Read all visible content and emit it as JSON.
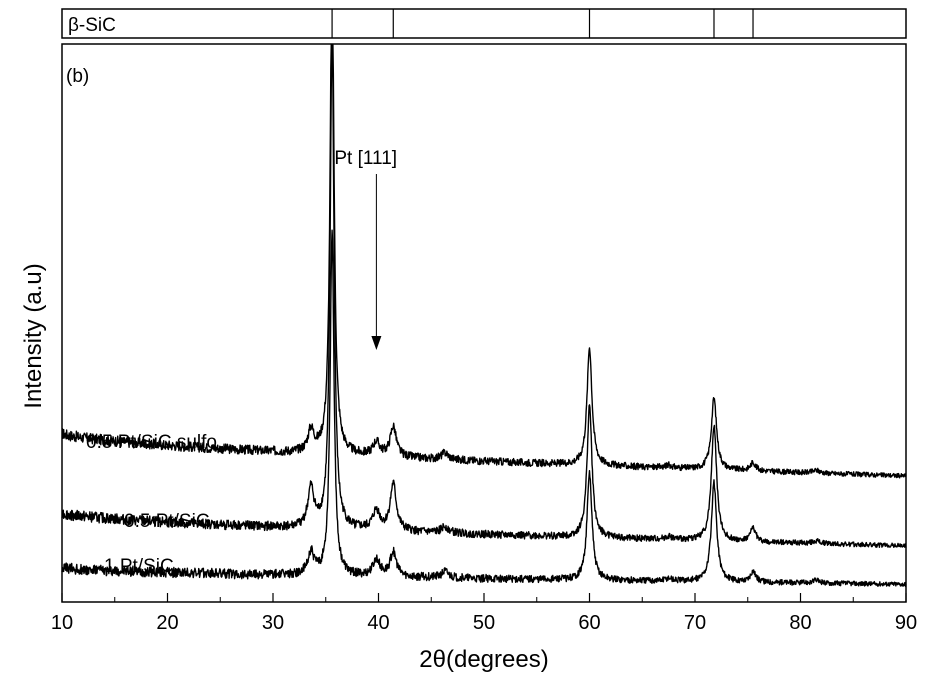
{
  "chart_data": {
    "type": "line",
    "title": "",
    "panel_label": "(b)",
    "xlabel": "2θ(degrees)",
    "ylabel": "Intensity (a.u)",
    "xlim": [
      10,
      90
    ],
    "xticks": [
      10,
      20,
      30,
      40,
      50,
      60,
      70,
      80,
      90
    ],
    "ytick_labels": false,
    "grid": false,
    "legend": "none",
    "reference": {
      "label": "β-SiC",
      "positions": [
        35.6,
        41.4,
        60.0,
        71.8,
        75.5
      ]
    },
    "annotation": {
      "text": "Pt [111]",
      "x": 39.8
    },
    "series": [
      {
        "name": "0.5 Pt/SiC sulfo",
        "baseline_start": 0.3,
        "baseline_end": 0.222,
        "peaks": [
          {
            "x": 33.6,
            "height": 0.04,
            "width": 0.35
          },
          {
            "x": 35.6,
            "height": 0.9,
            "width": 0.22
          },
          {
            "x": 39.8,
            "height": 0.025,
            "width": 0.4
          },
          {
            "x": 41.4,
            "height": 0.055,
            "width": 0.35
          },
          {
            "x": 46.3,
            "height": 0.012,
            "width": 0.4
          },
          {
            "x": 60.0,
            "height": 0.215,
            "width": 0.28
          },
          {
            "x": 67.5,
            "height": 0.005,
            "width": 0.4
          },
          {
            "x": 71.8,
            "height": 0.13,
            "width": 0.3
          },
          {
            "x": 75.5,
            "height": 0.015,
            "width": 0.3
          },
          {
            "x": 81.5,
            "height": 0.005,
            "width": 0.4
          }
        ]
      },
      {
        "name": "0.5 Pt/SiC",
        "baseline_start": 0.155,
        "baseline_end": 0.095,
        "peaks": [
          {
            "x": 33.6,
            "height": 0.07,
            "width": 0.35
          },
          {
            "x": 35.6,
            "height": 0.9,
            "width": 0.22
          },
          {
            "x": 39.8,
            "height": 0.035,
            "width": 0.4
          },
          {
            "x": 41.4,
            "height": 0.085,
            "width": 0.35
          },
          {
            "x": 46.3,
            "height": 0.012,
            "width": 0.4
          },
          {
            "x": 60.0,
            "height": 0.24,
            "width": 0.28
          },
          {
            "x": 67.5,
            "height": 0.005,
            "width": 0.4
          },
          {
            "x": 71.8,
            "height": 0.21,
            "width": 0.3
          },
          {
            "x": 75.5,
            "height": 0.025,
            "width": 0.3
          },
          {
            "x": 81.5,
            "height": 0.005,
            "width": 0.4
          }
        ]
      },
      {
        "name": "1 Pt/SiC",
        "baseline_start": 0.055,
        "baseline_end": 0.025,
        "peaks": [
          {
            "x": 33.6,
            "height": 0.04,
            "width": 0.35
          },
          {
            "x": 35.6,
            "height": 0.63,
            "width": 0.22
          },
          {
            "x": 39.8,
            "height": 0.03,
            "width": 0.4
          },
          {
            "x": 41.4,
            "height": 0.045,
            "width": 0.35
          },
          {
            "x": 46.3,
            "height": 0.012,
            "width": 0.4
          },
          {
            "x": 60.0,
            "height": 0.195,
            "width": 0.28
          },
          {
            "x": 67.5,
            "height": 0.005,
            "width": 0.4
          },
          {
            "x": 71.8,
            "height": 0.18,
            "width": 0.3
          },
          {
            "x": 75.5,
            "height": 0.02,
            "width": 0.3
          },
          {
            "x": 81.5,
            "height": 0.005,
            "width": 0.4
          }
        ]
      }
    ]
  }
}
